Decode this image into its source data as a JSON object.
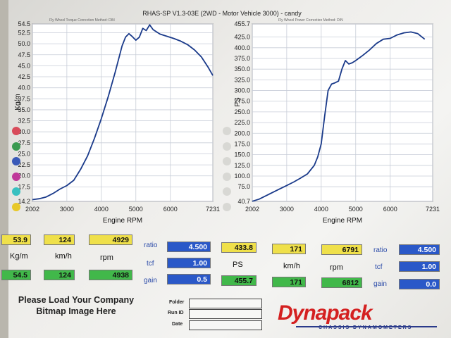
{
  "header": {
    "title": "RHAS-SP V1.3-03E  (2WD - Motor Vehicle 3000) -  candy",
    "left_sub": "Fly Wheel Torque        Correction Method: DIN",
    "right_sub": "Fly Wheel Power        Correction Method: DIN"
  },
  "colors": {
    "yellow": "#efe04a",
    "green": "#41b84a",
    "blue": "#2a58c8",
    "curve": "#1a3a8a"
  },
  "torque_panel": {
    "y_unit": "Kg/m",
    "swatches": [
      "#d84b5a",
      "#3a9a50",
      "#3a5ab8",
      "#c0389a",
      "#38c0c0",
      "#e8c828"
    ]
  },
  "power_panel": {
    "y_unit": "PS",
    "swatches": [
      "#d8d8d4",
      "#d8d8d4",
      "#d8d8d4",
      "#d8d8d4",
      "#d8d8d4",
      "#d8d8d4"
    ]
  },
  "chart_data": [
    {
      "type": "line",
      "xlabel": "Engine RPM",
      "ylabel": "Kg/m",
      "xlim": [
        2002,
        7231
      ],
      "ylim": [
        14.2,
        54.5
      ],
      "xticks": [
        "2002",
        "3000",
        "4000",
        "5000",
        "6000",
        "7231"
      ],
      "yticks": [
        "54.5",
        "52.5",
        "50.0",
        "47.5",
        "45.0",
        "42.5",
        "40.0",
        "37.5",
        "35.0",
        "32.5",
        "30.0",
        "27.5",
        "25.0",
        "22.5",
        "20.0",
        "17.5",
        "14.2"
      ],
      "grid": true,
      "series": [
        {
          "x": [
            2002,
            2200,
            2400,
            2600,
            2800,
            3000,
            3200,
            3400,
            3600,
            3800,
            4000,
            4200,
            4400,
            4600,
            4700,
            4800,
            4900,
            5000,
            5100,
            5200,
            5300,
            5400,
            5500,
            5700,
            5900,
            6100,
            6300,
            6500,
            6700,
            6900,
            7100,
            7231
          ],
          "values": [
            14.6,
            14.8,
            15.2,
            16.0,
            17.0,
            17.8,
            19.0,
            21.5,
            24.5,
            28.5,
            33.0,
            38.0,
            43.5,
            49.5,
            51.5,
            52.3,
            51.6,
            50.8,
            51.5,
            53.5,
            53.0,
            54.3,
            53.2,
            52.2,
            51.7,
            51.2,
            50.6,
            49.8,
            48.6,
            47.0,
            44.6,
            42.8
          ]
        }
      ]
    },
    {
      "type": "line",
      "xlabel": "Engine RPM",
      "ylabel": "PS",
      "xlim": [
        2002,
        7231
      ],
      "ylim": [
        40.7,
        455.7
      ],
      "xticks": [
        "2002",
        "3000",
        "4000",
        "5000",
        "6000",
        "7231"
      ],
      "yticks": [
        "455.7",
        "425.0",
        "400.0",
        "375.0",
        "350.0",
        "325.0",
        "300.0",
        "275.0",
        "250.0",
        "225.0",
        "200.0",
        "175.0",
        "150.0",
        "125.0",
        "100.0",
        "75.0",
        "40.7"
      ],
      "grid": true,
      "series": [
        {
          "x": [
            2002,
            2200,
            2400,
            2600,
            2800,
            3000,
            3200,
            3400,
            3600,
            3800,
            3900,
            4000,
            4100,
            4200,
            4300,
            4400,
            4500,
            4600,
            4700,
            4800,
            4900,
            5000,
            5200,
            5400,
            5600,
            5800,
            6000,
            6200,
            6400,
            6600,
            6800,
            7000
          ],
          "values": [
            41,
            46,
            54,
            62,
            70,
            78,
            86,
            95,
            105,
            125,
            145,
            175,
            240,
            300,
            315,
            318,
            322,
            350,
            370,
            362,
            365,
            370,
            382,
            395,
            410,
            420,
            422,
            430,
            435,
            437,
            433,
            420
          ]
        }
      ]
    }
  ],
  "torque_readout": {
    "cursor_values": [
      "53.9",
      "124",
      "4929"
    ],
    "units": [
      "Kg/m",
      "km/h",
      "rpm"
    ],
    "peak_values": [
      "54.5",
      "124",
      "4938"
    ]
  },
  "power_readout": {
    "cursor_values": [
      "433.8",
      "171",
      "6791"
    ],
    "units": [
      "PS",
      "km/h",
      "rpm"
    ],
    "peak_values": [
      "455.7",
      "171",
      "6812"
    ]
  },
  "left_params": {
    "labels": [
      "ratio",
      "tcf",
      "gain"
    ],
    "values": [
      "4.500",
      "1.00",
      "0.5"
    ]
  },
  "right_params": {
    "labels": [
      "ratio",
      "tcf",
      "gain"
    ],
    "values": [
      "4.500",
      "1.00",
      "0.0"
    ]
  },
  "footer": {
    "load_line1": "Please Load Your Company",
    "load_line2": "Bitmap Image Here",
    "folder_label": "Folder",
    "runid_label": "Run ID",
    "date_label": "Date",
    "logo": "Dynapack",
    "logo_sub": "CHASSIS DYNAMOMETERS"
  }
}
